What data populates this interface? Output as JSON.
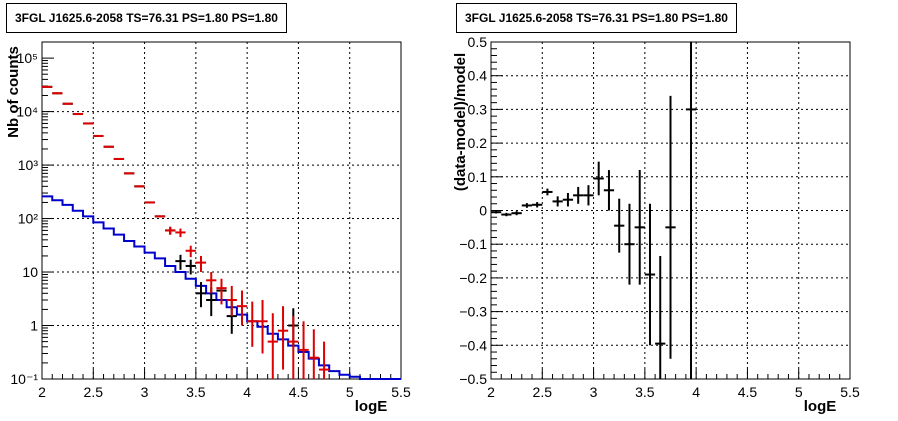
{
  "chart_data": [
    {
      "type": "line",
      "title": "3FGL J1625.6-2058 TS=76.31 PS=1.80 PS=1.80",
      "xlabel": "logE",
      "ylabel": "Nb of counts",
      "xlim": [
        2,
        5.5
      ],
      "ylim": [
        0.1,
        200000
      ],
      "ylog": true,
      "grid": true,
      "xticks": [
        "2",
        "2.5",
        "3",
        "3.5",
        "4",
        "4.5",
        "5",
        "5.5"
      ],
      "yticks": [
        {
          "value": 0.1,
          "label": "10⁻¹"
        },
        {
          "value": 1,
          "label": "1"
        },
        {
          "value": 10,
          "label": "10"
        },
        {
          "value": 100,
          "label": "10²"
        },
        {
          "value": 1000,
          "label": "10³"
        },
        {
          "value": 10000,
          "label": "10⁴"
        },
        {
          "value": 100000,
          "label": "10⁵"
        }
      ],
      "bin_width": 0.1,
      "series": [
        {
          "style": "step",
          "color": "#0000cc",
          "x": [
            2.05,
            2.15,
            2.25,
            2.35,
            2.45,
            2.55,
            2.65,
            2.75,
            2.85,
            2.95,
            3.05,
            3.15,
            3.25,
            3.35,
            3.45,
            3.55,
            3.65,
            3.75,
            3.85,
            3.95,
            4.05,
            4.15,
            4.25,
            4.35,
            4.45,
            4.55,
            4.65,
            4.75,
            4.85,
            4.95,
            5.05,
            5.15,
            5.25,
            5.35,
            5.45
          ],
          "y": [
            260,
            220,
            180,
            140,
            110,
            85,
            65,
            50,
            38,
            30,
            23,
            18,
            13,
            10,
            7.5,
            5.5,
            4,
            3,
            2.2,
            1.6,
            1.2,
            0.95,
            0.7,
            0.55,
            0.42,
            0.32,
            0.24,
            0.18,
            0.14,
            0.12,
            0.11,
            0.1,
            0.1,
            0.1,
            0.1
          ]
        },
        {
          "style": "errorbar",
          "color": "#000000",
          "x": [
            2.05,
            2.15,
            2.25,
            2.35,
            2.45,
            2.55,
            2.65,
            2.75,
            2.85,
            2.95,
            3.05,
            3.15,
            3.25,
            3.35,
            3.45,
            3.55,
            3.65,
            3.75,
            3.85,
            4.45
          ],
          "y": [
            29000,
            22000,
            14000,
            9000,
            6000,
            3500,
            2200,
            1300,
            700,
            400,
            200,
            110,
            60,
            16,
            13,
            4,
            3,
            4.5,
            1.5,
            1
          ],
          "err_lo": [
            0,
            0,
            0,
            0,
            0,
            0,
            0,
            0,
            0,
            0,
            0,
            0,
            10,
            5,
            4,
            1.8,
            1.5,
            2,
            0.8,
            0.6
          ],
          "err_hi": [
            0,
            0,
            0,
            0,
            0,
            0,
            0,
            0,
            0,
            0,
            0,
            0,
            10,
            5,
            4,
            2.5,
            2.2,
            2.8,
            1.4,
            1.1
          ]
        },
        {
          "style": "errorbar",
          "color": "#dd0000",
          "x": [
            2.05,
            2.15,
            2.25,
            2.35,
            2.45,
            2.55,
            2.65,
            2.75,
            2.85,
            2.95,
            3.05,
            3.15,
            3.25,
            3.35,
            3.45,
            3.55,
            3.65,
            3.75,
            3.85,
            3.95,
            4.05,
            4.15,
            4.25,
            4.35,
            4.45,
            4.55,
            4.65,
            4.75
          ],
          "y": [
            29000,
            22000,
            14000,
            9000,
            6000,
            3500,
            2200,
            1300,
            700,
            400,
            200,
            110,
            60,
            55,
            25,
            15,
            7,
            5,
            3,
            2.3,
            1.2,
            1.2,
            0.5,
            0.8,
            0.5,
            0.35,
            0.25,
            0.15
          ],
          "err_lo": [
            0,
            0,
            0,
            0,
            0,
            0,
            0,
            0,
            0,
            0,
            0,
            0,
            10,
            10,
            6,
            5,
            3,
            2.5,
            1.5,
            1.3,
            0.8,
            0.9,
            0.4,
            0.65,
            0.4,
            0.25,
            0.15,
            0.05
          ],
          "err_hi": [
            0,
            0,
            0,
            0,
            0,
            0,
            0,
            0,
            0,
            0,
            0,
            0,
            10,
            10,
            6,
            5,
            3,
            2.5,
            2.5,
            2.2,
            1.6,
            1.8,
            1.2,
            1.5,
            1.0,
            0.85,
            0.6,
            0.35
          ]
        }
      ]
    },
    {
      "type": "scatter",
      "title": "3FGL J1625.6-2058 TS=76.31 PS=1.80 PS=1.80",
      "xlabel": "logE",
      "ylabel": "(data-model)/model",
      "xlim": [
        2,
        5.5
      ],
      "ylim": [
        -0.5,
        0.5
      ],
      "grid": true,
      "xticks": [
        "2",
        "2.5",
        "3",
        "3.5",
        "4",
        "4.5",
        "5",
        "5.5"
      ],
      "yticks": [
        "−0.5",
        "−0.4",
        "−0.3",
        "−0.2",
        "−0.1",
        "0",
        "0.1",
        "0.2",
        "0.3",
        "0.4",
        "0.5"
      ],
      "bin_width": 0.1,
      "series": [
        {
          "style": "errorbar",
          "color": "#000000",
          "x": [
            2.05,
            2.15,
            2.25,
            2.35,
            2.45,
            2.55,
            2.65,
            2.75,
            2.85,
            2.95,
            3.05,
            3.15,
            3.25,
            3.35,
            3.45,
            3.55,
            3.65,
            3.75,
            3.95
          ],
          "y": [
            -0.005,
            -0.012,
            -0.008,
            0.015,
            0.017,
            0.055,
            0.027,
            0.032,
            0.045,
            0.045,
            0.095,
            0.06,
            -0.045,
            -0.1,
            -0.05,
            -0.19,
            -0.395,
            -0.05,
            0.3
          ],
          "err": [
            0.004,
            0.005,
            0.006,
            0.007,
            0.008,
            0.01,
            0.015,
            0.02,
            0.025,
            0.03,
            0.05,
            0.06,
            0.08,
            0.12,
            0.17,
            0.21,
            0.26,
            0.39,
            0.85
          ]
        }
      ]
    }
  ]
}
